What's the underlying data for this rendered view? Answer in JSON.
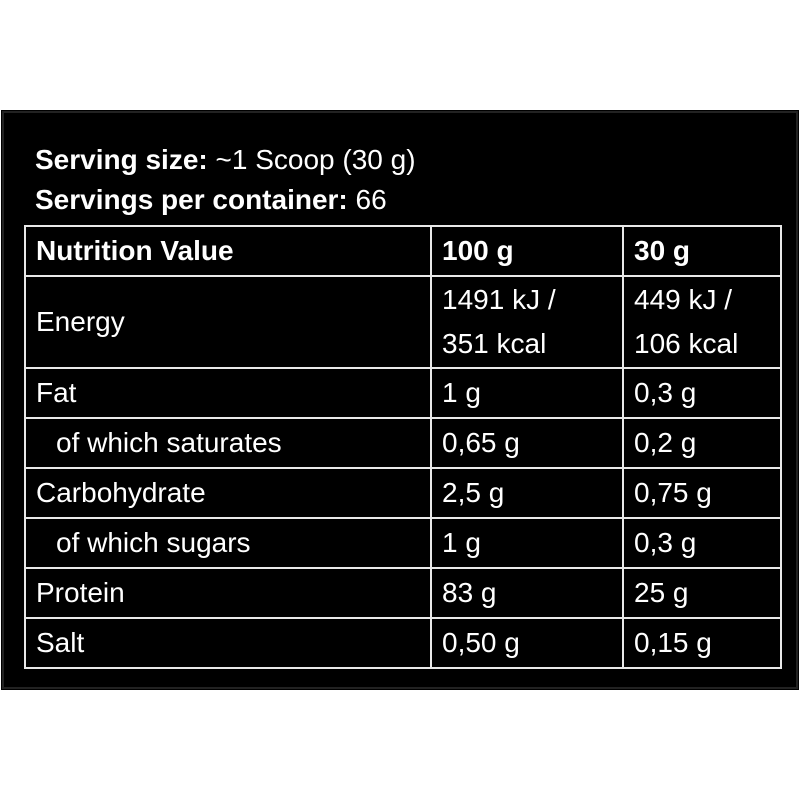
{
  "serving_size": {
    "label": "Serving size:",
    "value": "~1 Scoop (30 g)"
  },
  "servings_per_container": {
    "label": "Servings per container:",
    "value": "66"
  },
  "table": {
    "header": [
      "Nutrition Value",
      "100 g",
      "30 g"
    ],
    "rows": [
      [
        "Energy",
        [
          "1491 kJ /",
          "351 kcal"
        ],
        [
          "449 kJ /",
          "106 kcal"
        ]
      ],
      [
        "Fat",
        "1 g",
        "0,3 g"
      ],
      [
        "of which saturates",
        "0,65 g",
        "0,2 g"
      ],
      [
        "Carbohydrate",
        "2,5 g",
        "0,75 g"
      ],
      [
        "of which sugars",
        "1 g",
        "0,3 g"
      ],
      [
        "Protein",
        "83 g",
        "25 g"
      ],
      [
        "Salt",
        "0,50 g",
        "0,15 g"
      ]
    ]
  }
}
